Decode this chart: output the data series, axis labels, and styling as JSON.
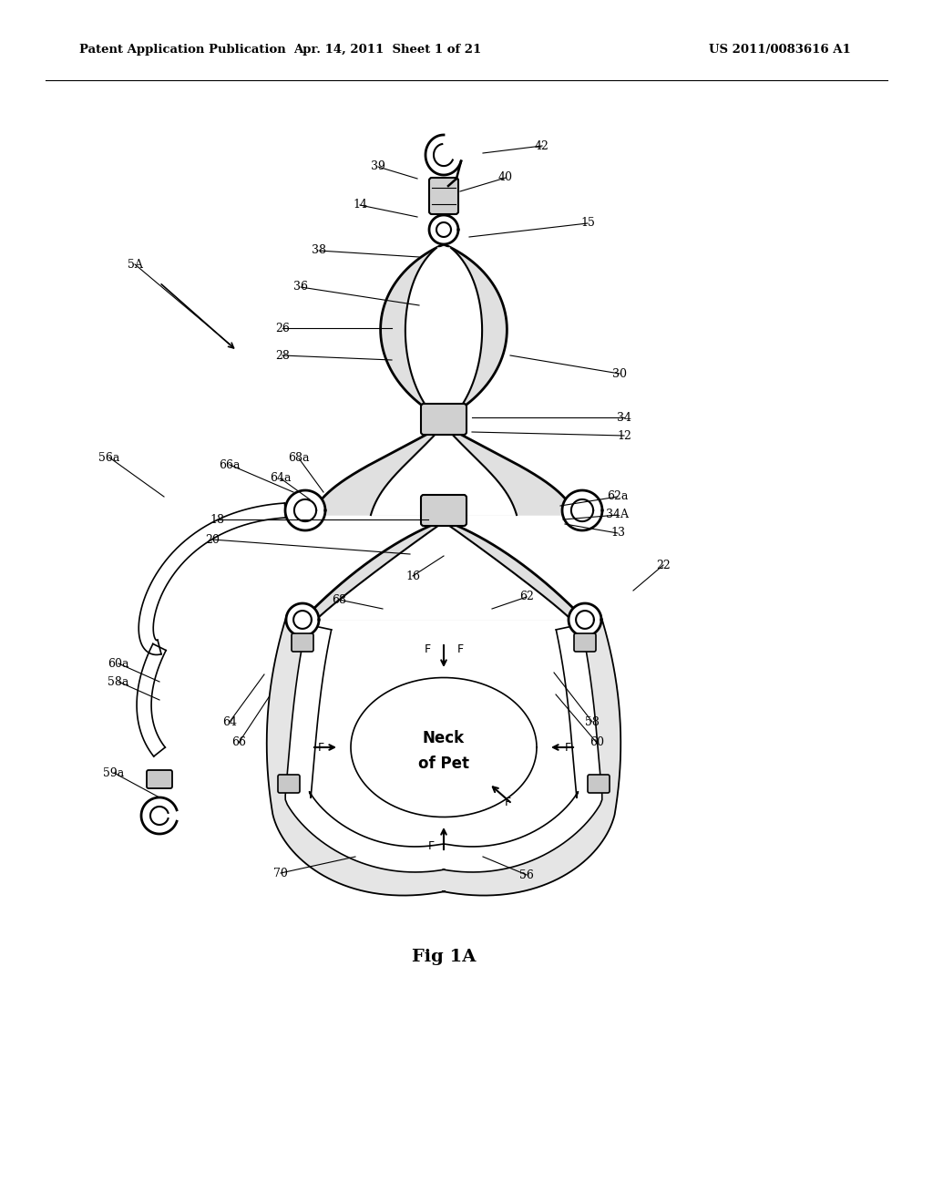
{
  "title_left": "Patent Application Publication",
  "title_center": "Apr. 14, 2011  Sheet 1 of 21",
  "title_right": "US 2011/0083616 A1",
  "fig_label": "Fig 1A",
  "bg_color": "#ffffff",
  "line_color": "#000000",
  "strap_fill": "#e8e8e8",
  "strap_lw": 1.5
}
